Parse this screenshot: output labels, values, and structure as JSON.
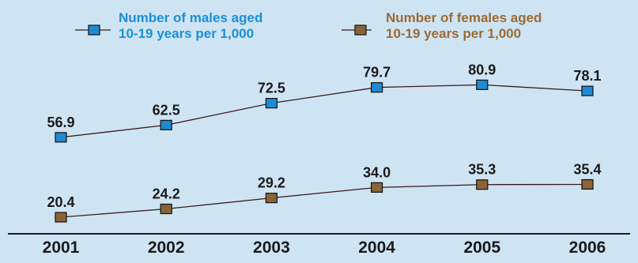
{
  "chart_data": {
    "type": "line",
    "categories": [
      "2001",
      "2002",
      "2003",
      "2004",
      "2005",
      "2006"
    ],
    "series": [
      {
        "name": "Number of males aged 10-19 years per 1,000",
        "legend_lines": [
          "Number of males aged",
          "10-19 years per 1,000"
        ],
        "values": [
          56.9,
          62.5,
          72.5,
          79.7,
          80.9,
          78.1
        ],
        "labels": [
          "56.9",
          "62.5",
          "72.5",
          "79.7",
          "80.9",
          "78.1"
        ],
        "color": "#1f8ad0",
        "legend_color": "#1a8fd6"
      },
      {
        "name": "Number of females aged 10-19 years per 1,000",
        "legend_lines": [
          "Number of females aged",
          "10-19 years per 1,000"
        ],
        "values": [
          20.4,
          24.2,
          29.2,
          34.0,
          35.3,
          35.4
        ],
        "labels": [
          "20.4",
          "24.2",
          "29.2",
          "34.0",
          "35.3",
          "35.4"
        ],
        "color": "#8a6436",
        "legend_color": "#9a6b35"
      }
    ],
    "legend_position": "top",
    "grid": false,
    "colors": {
      "background": "#cfe4f3",
      "line": "#3a1a1a",
      "axis": "#1a1a1a"
    }
  }
}
